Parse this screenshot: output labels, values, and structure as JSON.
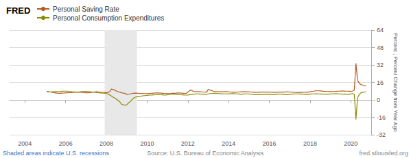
{
  "chart_data": {
    "type": "line",
    "title": "FRED",
    "ylabel": "Percent ; Percent Change from Year Ago",
    "annotations": [
      "Shaded areas indicate U.S. recessions",
      "Source: U.S. Bureau of Economic Analysis",
      "fred.stlouisfed.org"
    ],
    "legend": "upper left",
    "grid": true,
    "xlim": [
      2003.25,
      2021.0
    ],
    "xticks": [
      2004,
      2006,
      2008,
      2010,
      2012,
      2014,
      2016,
      2018,
      2020
    ],
    "ylim": [
      -32,
      64
    ],
    "yticks": [
      -32,
      -16,
      0,
      16,
      32,
      48,
      64
    ],
    "recession_shading": [
      [
        2007.917,
        2009.5
      ]
    ],
    "x": [
      2005.08,
      2005.17,
      2005.25,
      2005.33,
      2005.42,
      2005.5,
      2005.58,
      2005.67,
      2005.75,
      2005.83,
      2005.92,
      2006.0,
      2006.08,
      2006.17,
      2006.25,
      2006.33,
      2006.42,
      2006.5,
      2006.58,
      2006.67,
      2006.75,
      2006.83,
      2006.92,
      2007.0,
      2007.08,
      2007.17,
      2007.25,
      2007.33,
      2007.42,
      2007.5,
      2007.58,
      2007.67,
      2007.75,
      2007.83,
      2007.92,
      2008.0,
      2008.08,
      2008.17,
      2008.25,
      2008.33,
      2008.42,
      2008.5,
      2008.58,
      2008.67,
      2008.75,
      2008.83,
      2008.92,
      2009.0,
      2009.08,
      2009.17,
      2009.25,
      2009.33,
      2009.42,
      2009.5,
      2009.58,
      2009.67,
      2009.75,
      2009.83,
      2009.92,
      2010.0,
      2010.08,
      2010.17,
      2010.25,
      2010.33,
      2010.42,
      2010.5,
      2010.58,
      2010.67,
      2010.75,
      2010.83,
      2010.92,
      2011.0,
      2011.08,
      2011.17,
      2011.25,
      2011.33,
      2011.42,
      2011.5,
      2011.58,
      2011.67,
      2011.75,
      2011.83,
      2011.92,
      2012.0,
      2012.08,
      2012.17,
      2012.25,
      2012.33,
      2012.42,
      2012.5,
      2012.58,
      2012.67,
      2012.75,
      2012.83,
      2012.92,
      2013.0,
      2013.08,
      2013.17,
      2013.25,
      2013.33,
      2013.42,
      2013.5,
      2013.58,
      2013.67,
      2013.75,
      2013.83,
      2013.92,
      2014.0,
      2014.08,
      2014.17,
      2014.25,
      2014.33,
      2014.42,
      2014.5,
      2014.58,
      2014.67,
      2014.75,
      2014.83,
      2014.92,
      2015.0,
      2015.08,
      2015.17,
      2015.25,
      2015.33,
      2015.42,
      2015.5,
      2015.58,
      2015.67,
      2015.75,
      2015.83,
      2015.92,
      2016.0,
      2016.08,
      2016.17,
      2016.25,
      2016.33,
      2016.42,
      2016.5,
      2016.58,
      2016.67,
      2016.75,
      2016.83,
      2016.92,
      2017.0,
      2017.08,
      2017.17,
      2017.25,
      2017.33,
      2017.42,
      2017.5,
      2017.58,
      2017.67,
      2017.75,
      2017.83,
      2017.92,
      2018.0,
      2018.08,
      2018.17,
      2018.25,
      2018.33,
      2018.42,
      2018.5,
      2018.58,
      2018.67,
      2018.75,
      2018.83,
      2018.92,
      2019.0,
      2019.08,
      2019.17,
      2019.25,
      2019.33,
      2019.42,
      2019.5,
      2019.58,
      2019.67,
      2019.75,
      2019.83,
      2019.92,
      2020.0,
      2020.08,
      2020.17,
      2020.25,
      2020.33,
      2020.42,
      2020.5,
      2020.58,
      2020.67,
      2020.75
    ],
    "series": [
      {
        "name": "Personal Saving Rate",
        "color": "#b35a1f",
        "values": [
          7.8,
          7.5,
          7.2,
          6.9,
          6.6,
          6.4,
          6.2,
          6.0,
          6.1,
          6.2,
          6.3,
          6.4,
          6.5,
          6.6,
          6.7,
          6.8,
          6.9,
          7.0,
          7.0,
          7.0,
          6.9,
          6.8,
          6.7,
          6.5,
          6.5,
          6.6,
          6.8,
          7.0,
          7.2,
          7.4,
          7.3,
          7.2,
          7.0,
          6.9,
          6.8,
          6.5,
          6.8,
          7.5,
          10.0,
          9.5,
          9.0,
          8.0,
          7.5,
          7.0,
          6.5,
          6.2,
          6.0,
          5.0,
          5.2,
          5.5,
          5.8,
          6.0,
          6.2,
          6.1,
          6.0,
          5.9,
          5.9,
          5.8,
          5.7,
          5.8,
          5.9,
          6.0,
          6.1,
          6.2,
          6.3,
          6.3,
          6.3,
          6.2,
          6.1,
          6.0,
          5.9,
          5.8,
          5.8,
          5.9,
          6.0,
          6.1,
          6.2,
          6.3,
          6.3,
          6.2,
          6.1,
          6.0,
          5.9,
          7.0,
          8.5,
          9.0,
          8.0,
          7.5,
          7.5,
          7.5,
          7.5,
          7.3,
          7.2,
          7.1,
          7.0,
          9.5,
          9.0,
          8.5,
          8.0,
          7.8,
          7.6,
          7.5,
          7.5,
          7.5,
          7.5,
          7.5,
          7.4,
          7.3,
          7.2,
          7.1,
          7.0,
          7.0,
          7.1,
          7.2,
          7.3,
          7.4,
          7.4,
          7.4,
          7.3,
          7.3,
          7.2,
          7.1,
          7.0,
          7.0,
          7.0,
          7.0,
          7.1,
          7.1,
          7.2,
          7.2,
          7.2,
          7.2,
          7.1,
          7.0,
          7.0,
          7.0,
          7.0,
          7.1,
          7.1,
          7.2,
          7.2,
          7.3,
          7.3,
          7.2,
          7.1,
          7.0,
          6.9,
          6.8,
          6.8,
          6.8,
          6.8,
          6.9,
          6.9,
          7.0,
          7.0,
          7.5,
          7.8,
          8.0,
          8.2,
          8.3,
          8.3,
          8.2,
          8.1,
          7.9,
          7.8,
          7.7,
          7.6,
          7.6,
          7.6,
          7.7,
          7.8,
          7.9,
          8.0,
          8.1,
          8.1,
          8.1,
          8.0,
          8.0,
          7.9,
          7.8,
          8.0,
          9.0,
          33.5,
          18.0,
          15.0,
          14.0,
          13.5,
          13.0,
          12.8
        ]
      },
      {
        "name": "Personal Consumption Expenditures",
        "color": "#8b8b00",
        "values": [
          7.5,
          7.3,
          7.2,
          7.4,
          7.5,
          7.6,
          7.5,
          7.4,
          7.8,
          7.9,
          8.0,
          8.0,
          7.9,
          7.7,
          7.5,
          7.4,
          7.3,
          7.2,
          7.2,
          7.3,
          7.5,
          7.6,
          7.7,
          7.8,
          7.7,
          7.5,
          7.3,
          7.2,
          7.0,
          6.8,
          6.6,
          6.4,
          6.3,
          6.2,
          6.1,
          5.8,
          5.2,
          4.5,
          3.5,
          2.5,
          1.5,
          0.5,
          -0.5,
          -2.0,
          -4.0,
          -4.5,
          -5.0,
          -4.5,
          -3.0,
          -1.5,
          0.0,
          1.5,
          2.5,
          2.8,
          3.0,
          3.2,
          3.5,
          3.8,
          4.0,
          4.2,
          4.3,
          4.4,
          4.5,
          4.6,
          4.7,
          4.8,
          4.8,
          4.7,
          4.6,
          4.5,
          4.4,
          4.8,
          5.0,
          5.2,
          5.3,
          5.3,
          5.2,
          5.0,
          4.8,
          4.7,
          4.6,
          4.5,
          4.4,
          4.5,
          4.8,
          5.0,
          5.2,
          5.3,
          5.5,
          5.5,
          5.4,
          5.3,
          5.2,
          5.1,
          5.0,
          5.5,
          5.8,
          5.9,
          6.0,
          6.0,
          5.9,
          5.8,
          5.7,
          5.6,
          5.5,
          5.5,
          5.4,
          5.5,
          5.6,
          5.7,
          5.7,
          5.6,
          5.5,
          5.4,
          5.3,
          5.3,
          5.4,
          5.5,
          5.5,
          5.5,
          5.3,
          5.1,
          5.0,
          4.9,
          4.8,
          4.8,
          4.9,
          5.0,
          5.1,
          5.1,
          5.0,
          5.0,
          4.9,
          4.9,
          5.0,
          5.1,
          5.2,
          5.2,
          5.2,
          5.1,
          5.0,
          5.0,
          5.0,
          5.2,
          5.3,
          5.4,
          5.5,
          5.5,
          5.5,
          5.4,
          5.3,
          5.2,
          5.1,
          5.0,
          5.0,
          5.2,
          5.4,
          5.5,
          5.6,
          5.6,
          5.5,
          5.4,
          5.3,
          5.2,
          5.2,
          5.2,
          5.3,
          5.4,
          5.5,
          5.6,
          5.6,
          5.6,
          5.5,
          5.4,
          5.3,
          5.2,
          5.1,
          5.1,
          5.1,
          5.5,
          5.8,
          5.2,
          -18.0,
          2.0,
          5.0,
          6.5,
          7.0,
          7.2,
          7.3
        ]
      }
    ]
  }
}
